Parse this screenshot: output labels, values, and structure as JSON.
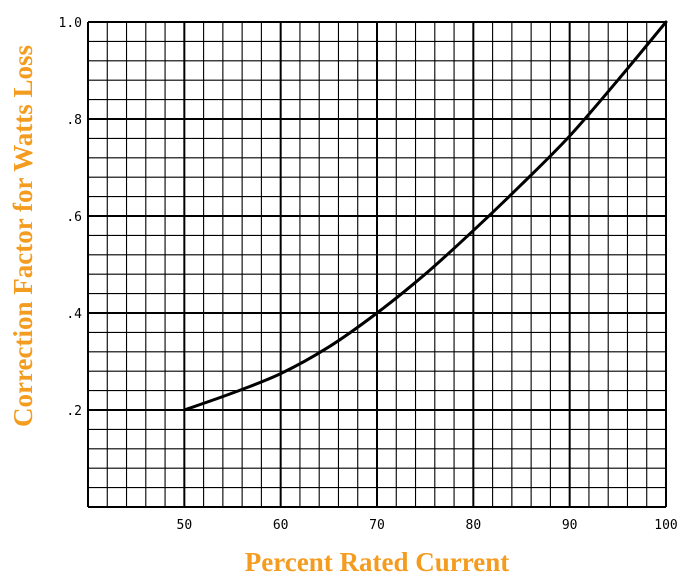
{
  "chart_data": {
    "type": "line",
    "xlabel": "Percent Rated Current",
    "ylabel": "Correction Factor for Watts Loss",
    "xlim": [
      40,
      100
    ],
    "ylim": [
      0,
      1.0
    ],
    "x_ticks": [
      50,
      60,
      70,
      80,
      90,
      100
    ],
    "x_tick_labels": [
      "50",
      "60",
      "70",
      "80",
      "90",
      "100"
    ],
    "y_ticks": [
      0.2,
      0.4,
      0.6,
      0.8,
      1.0
    ],
    "y_tick_labels": [
      ".2",
      ".4",
      ".6",
      ".8",
      "1.0"
    ],
    "grid": true,
    "series": [
      {
        "x": [
          50,
          55,
          60,
          65,
          70,
          75,
          80,
          85,
          90,
          95,
          100
        ],
        "y": [
          0.2,
          0.235,
          0.275,
          0.33,
          0.4,
          0.48,
          0.57,
          0.665,
          0.765,
          0.88,
          1.0
        ]
      }
    ],
    "colors": {
      "axis_title": "#f39c1f",
      "line": "#000000",
      "grid": "#000000"
    }
  }
}
